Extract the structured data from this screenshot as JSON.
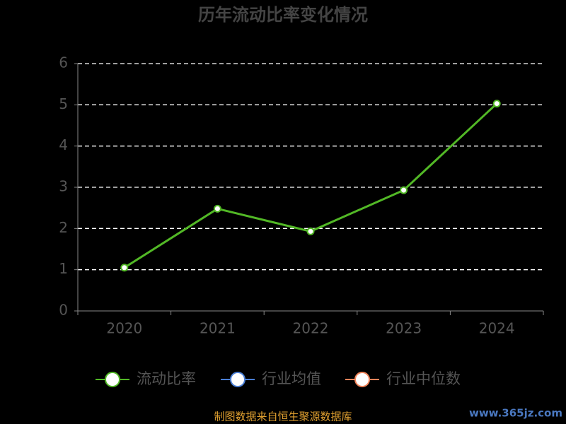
{
  "chart_data": {
    "type": "line",
    "title": "历年流动比率变化情况",
    "categories": [
      "2020",
      "2021",
      "2022",
      "2023",
      "2024"
    ],
    "series": [
      {
        "name": "流动比率",
        "color": "#52b826",
        "values": [
          1.05,
          2.48,
          1.93,
          2.93,
          5.03
        ]
      },
      {
        "name": "行业均值",
        "color": "#4a7fd6",
        "values": [
          null,
          null,
          null,
          null,
          null
        ]
      },
      {
        "name": "行业中位数",
        "color": "#f0845a",
        "values": [
          null,
          null,
          null,
          null,
          null
        ]
      }
    ],
    "ylim": [
      0,
      6
    ],
    "yticks": [
      0,
      1,
      2,
      3,
      4,
      5,
      6
    ],
    "grid": true,
    "legend": "bottom",
    "source": "制图数据来自恒生聚源数据库",
    "watermark": "www.365jz.com"
  }
}
